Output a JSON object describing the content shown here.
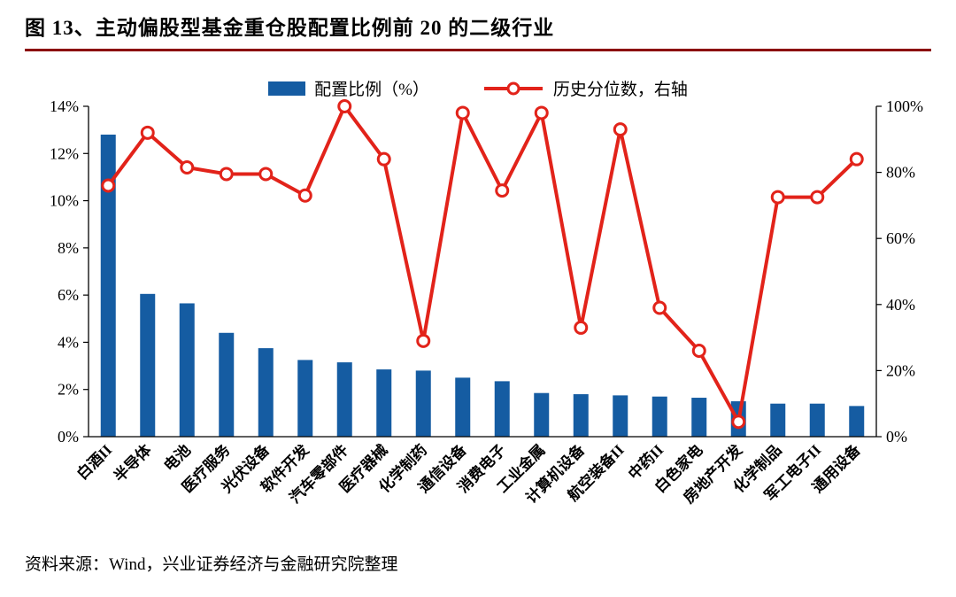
{
  "title": "图 13、主动偏股型基金重仓股配置比例前 20 的二级行业",
  "source": "资料来源：Wind，兴业证券经济与金融研究院整理",
  "legend": {
    "bar_label": "配置比例（%）",
    "line_label": "历史分位数，右轴"
  },
  "colors": {
    "bar": "#155CA2",
    "line": "#E2231A",
    "title_rule": "#8B0000",
    "axis": "#000000"
  },
  "chart_data": {
    "type": "bar+line",
    "title": "主动偏股型基金重仓股配置比例前 20 的二级行业",
    "categories": [
      "白酒II",
      "半导体",
      "电池",
      "医疗服务",
      "光伏设备",
      "软件开发",
      "汽车零部件",
      "医疗器械",
      "化学制药",
      "通信设备",
      "消费电子",
      "工业金属",
      "计算机设备",
      "航空装备II",
      "中药II",
      "白色家电",
      "房地产开发",
      "化学制品",
      "军工电子II",
      "通用设备"
    ],
    "series": [
      {
        "name": "配置比例（%）",
        "type": "bar",
        "axis": "left",
        "values": [
          12.8,
          6.05,
          5.65,
          4.4,
          3.75,
          3.25,
          3.15,
          2.85,
          2.8,
          2.5,
          2.35,
          1.85,
          1.8,
          1.75,
          1.7,
          1.65,
          1.5,
          1.4,
          1.4,
          1.3
        ]
      },
      {
        "name": "历史分位数，右轴",
        "type": "line",
        "axis": "right",
        "values": [
          76,
          92,
          81.5,
          79.5,
          79.5,
          73,
          100,
          84,
          29,
          98,
          74.5,
          98,
          33,
          93,
          39,
          26,
          4.5,
          72.5,
          72.5,
          84
        ]
      }
    ],
    "left_axis": {
      "min": 0,
      "max": 14,
      "ticks": [
        "0%",
        "2%",
        "4%",
        "6%",
        "8%",
        "10%",
        "12%",
        "14%"
      ]
    },
    "right_axis": {
      "min": 0,
      "max": 100,
      "ticks": [
        "0%",
        "20%",
        "40%",
        "60%",
        "80%",
        "100%"
      ]
    },
    "grid": false,
    "legend_position": "top-center"
  }
}
